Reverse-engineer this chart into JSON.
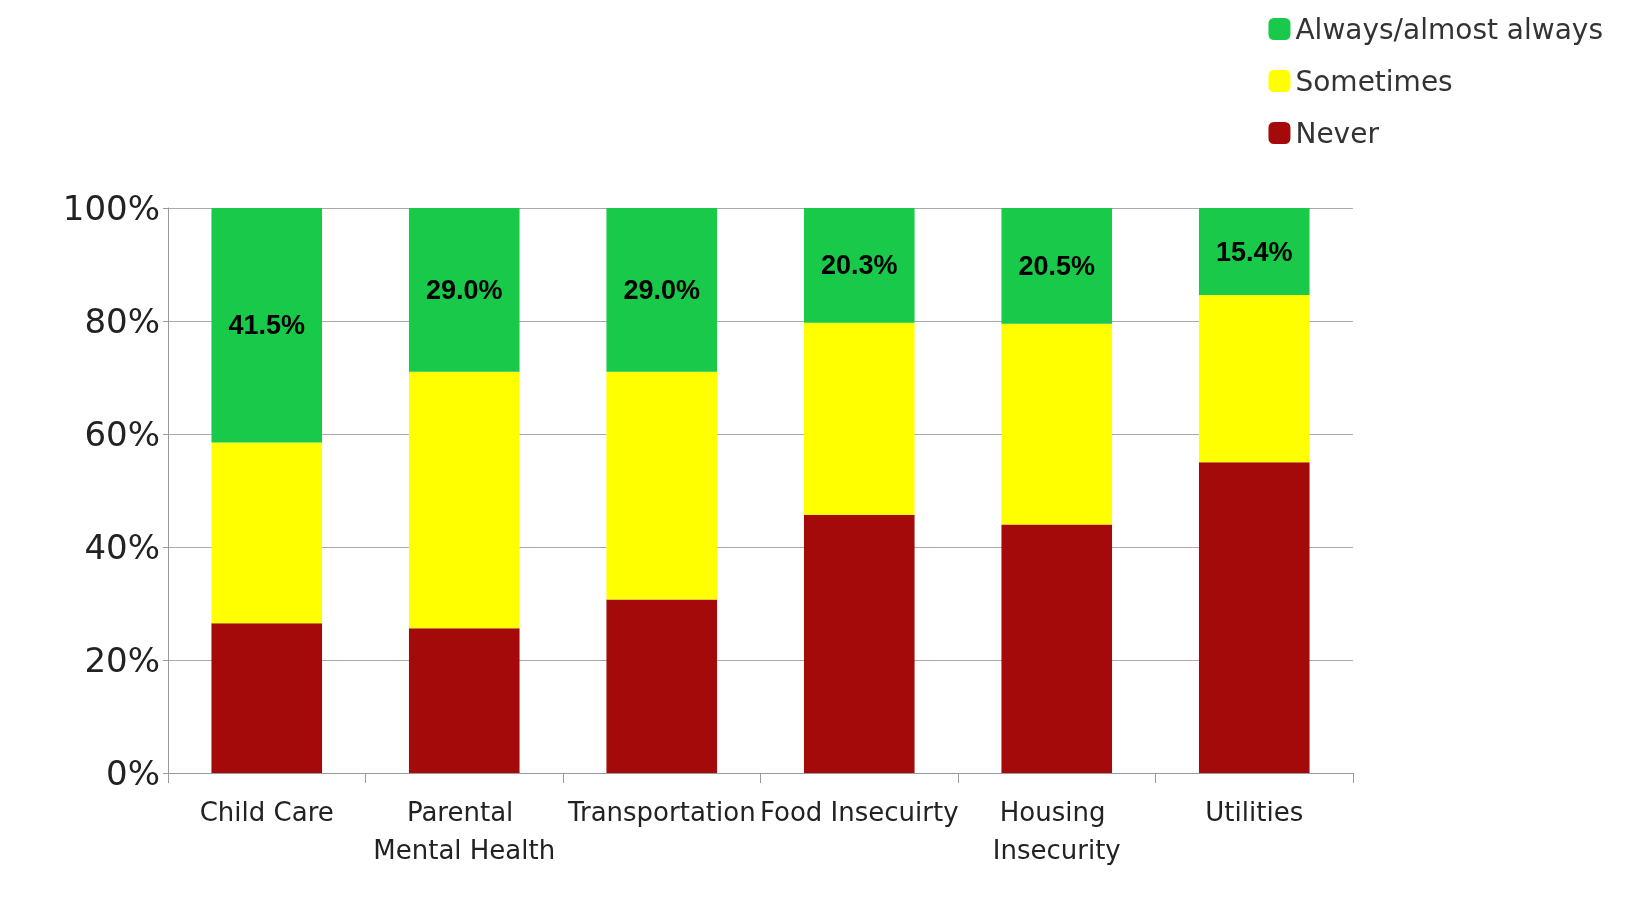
{
  "chart_data": {
    "type": "bar",
    "stacked": true,
    "categories": [
      "Child Care",
      "Parental Mental Health",
      "Transportation",
      "Food Insecuirty",
      "Housing Insecurity",
      "Utilities"
    ],
    "series": [
      {
        "name": "Never",
        "color": "#a50a0a",
        "values": [
          26.5,
          25.6,
          30.7,
          45.7,
          44.0,
          55.0
        ]
      },
      {
        "name": "Sometimes",
        "color": "#ffff00",
        "values": [
          32.0,
          45.4,
          40.3,
          34.0,
          35.5,
          29.6
        ]
      },
      {
        "name": "Always/almost always",
        "color": "#18c94a",
        "values": [
          41.5,
          29.0,
          29.0,
          20.3,
          20.5,
          15.4
        ],
        "value_labels": [
          "41.5%",
          "29.0%",
          "29.0%",
          "20.3%",
          "20.5%",
          "15.4%"
        ]
      }
    ],
    "ylim": [
      0,
      100
    ],
    "yticks": [
      {
        "value": 0,
        "label": "0%"
      },
      {
        "value": 20,
        "label": "20%"
      },
      {
        "value": 40,
        "label": "40%"
      },
      {
        "value": 60,
        "label": "60%"
      },
      {
        "value": 80,
        "label": "80%"
      },
      {
        "value": 100,
        "label": "100%"
      }
    ],
    "grid": "y",
    "legend": "top right"
  }
}
